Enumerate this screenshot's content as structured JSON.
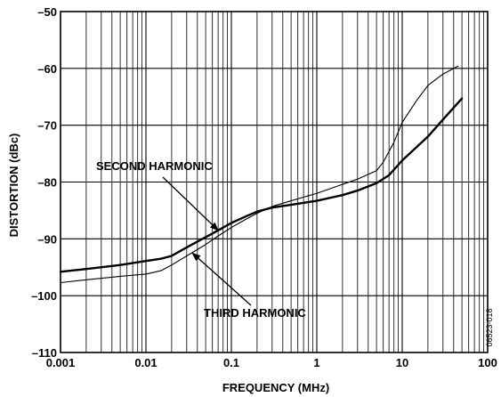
{
  "chart_data": {
    "type": "line",
    "xlabel": "FREQUENCY (MHz)",
    "ylabel": "DISTORTION (dBc)",
    "x_scale": "log",
    "xlim": [
      0.001,
      100
    ],
    "ylim": [
      -110,
      -50
    ],
    "grid": true,
    "x_ticks": [
      {
        "value": 0.001,
        "label": "0.001"
      },
      {
        "value": 0.01,
        "label": "0.01"
      },
      {
        "value": 0.1,
        "label": "0.1"
      },
      {
        "value": 1,
        "label": "1"
      },
      {
        "value": 10,
        "label": "10"
      },
      {
        "value": 100,
        "label": "100"
      }
    ],
    "y_ticks": [
      {
        "value": -50,
        "label": "–50"
      },
      {
        "value": -60,
        "label": "–60"
      },
      {
        "value": -70,
        "label": "–70"
      },
      {
        "value": -80,
        "label": "–80"
      },
      {
        "value": -90,
        "label": "–90"
      },
      {
        "value": -100,
        "label": "–100"
      },
      {
        "value": -110,
        "label": "–110"
      }
    ],
    "series": [
      {
        "name": "SECOND HARMONIC",
        "style": "thick",
        "points": [
          [
            0.001,
            -95.8
          ],
          [
            0.002,
            -95.3
          ],
          [
            0.005,
            -94.6
          ],
          [
            0.01,
            -93.9
          ],
          [
            0.015,
            -93.5
          ],
          [
            0.02,
            -93.0
          ],
          [
            0.03,
            -91.5
          ],
          [
            0.05,
            -89.7
          ],
          [
            0.07,
            -88.5
          ],
          [
            0.1,
            -87.2
          ],
          [
            0.15,
            -86.0
          ],
          [
            0.2,
            -85.2
          ],
          [
            0.3,
            -84.5
          ],
          [
            0.5,
            -84.0
          ],
          [
            1,
            -83.3
          ],
          [
            2,
            -82.3
          ],
          [
            3,
            -81.5
          ],
          [
            5,
            -80.2
          ],
          [
            7,
            -78.8
          ],
          [
            10,
            -76.2
          ],
          [
            20,
            -72.0
          ],
          [
            30,
            -69.0
          ],
          [
            50,
            -65.3
          ]
        ]
      },
      {
        "name": "THIRD HARMONIC",
        "style": "thin",
        "points": [
          [
            0.001,
            -97.7
          ],
          [
            0.002,
            -97.2
          ],
          [
            0.005,
            -96.6
          ],
          [
            0.01,
            -96.2
          ],
          [
            0.015,
            -95.6
          ],
          [
            0.02,
            -94.6
          ],
          [
            0.03,
            -93.0
          ],
          [
            0.05,
            -91.0
          ],
          [
            0.07,
            -89.5
          ],
          [
            0.1,
            -88.0
          ],
          [
            0.15,
            -86.5
          ],
          [
            0.2,
            -85.5
          ],
          [
            0.3,
            -84.3
          ],
          [
            0.5,
            -83.3
          ],
          [
            1,
            -82.0
          ],
          [
            2,
            -80.4
          ],
          [
            3,
            -79.5
          ],
          [
            5,
            -78.0
          ],
          [
            6,
            -76.5
          ],
          [
            8,
            -73.0
          ],
          [
            10,
            -69.5
          ],
          [
            15,
            -65.5
          ],
          [
            20,
            -63.0
          ],
          [
            30,
            -61.0
          ],
          [
            45,
            -59.6
          ]
        ]
      }
    ],
    "annotations": [
      {
        "text": "SECOND HARMONIC",
        "target": [
          0.07,
          -88.5
        ]
      },
      {
        "text": "THIRD HARMONIC",
        "target": [
          0.035,
          -92.5
        ]
      }
    ],
    "figure_number": "06523-018"
  }
}
